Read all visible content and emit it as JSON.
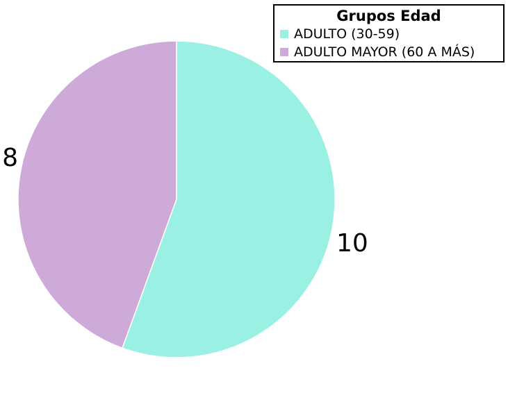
{
  "chart_data": {
    "type": "pie",
    "legend_title": "Grupos Edad",
    "legend_position": "top-right",
    "series": [
      {
        "name": "ADULTO (30-59)",
        "value": 10,
        "color": "#9af0e2"
      },
      {
        "name": "ADULTO MAYOR (60 A MÁS)",
        "value": 8,
        "color": "#cdaad8"
      }
    ]
  }
}
